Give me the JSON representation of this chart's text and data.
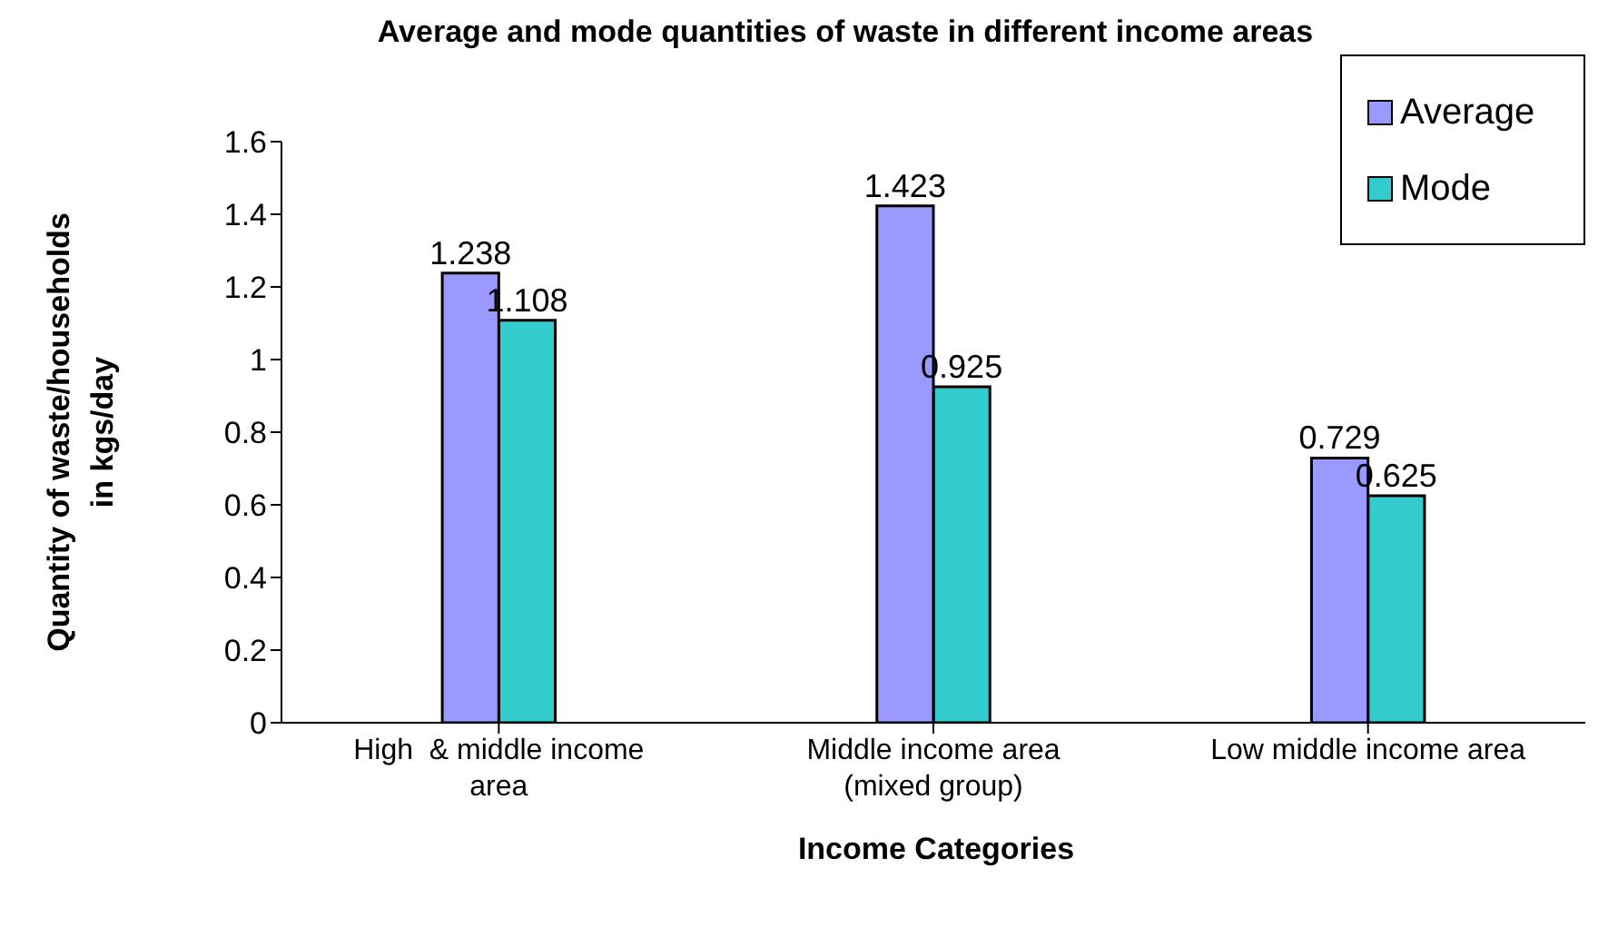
{
  "chart_data": {
    "type": "bar",
    "title": "Average and mode quantities of waste in different income areas",
    "xlabel": "Income Categories",
    "ylabel": "Quantity of waste/households in kgs/day",
    "categories": [
      "High  & middle income area",
      "Middle income area (mixed group)",
      "Low middle income area"
    ],
    "series": [
      {
        "name": "Average",
        "color": "#9999ff",
        "values": [
          1.238,
          1.423,
          0.729
        ]
      },
      {
        "name": "Mode",
        "color": "#33cccc",
        "values": [
          1.108,
          0.925,
          0.625
        ]
      }
    ],
    "ylim": [
      0,
      1.6
    ],
    "yticks": [
      0,
      0.2,
      0.4,
      0.6,
      0.8,
      1,
      1.2,
      1.4,
      1.6
    ],
    "grid": false,
    "legend": "top right",
    "data_labels": true
  }
}
